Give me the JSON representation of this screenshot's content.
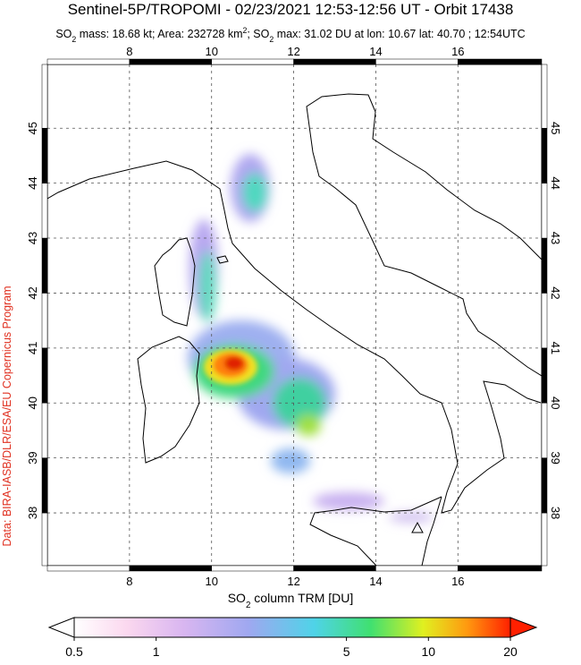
{
  "header": {
    "title": "Sentinel-5P/TROPOMI - 02/23/2021 12:53-12:56 UT - Orbit 17438",
    "subtitle_parts": [
      {
        "text": "SO",
        "sub": "2"
      },
      {
        "text": " mass: 18.68 kt; Area: 232728 km",
        "sup": "2"
      },
      {
        "text": "; SO",
        "sub": "2"
      },
      {
        "text": " max: 31.02 DU at lon: 10.67 lat: 40.70 ; 12:54UTC"
      }
    ]
  },
  "map": {
    "lonlim": [
      6,
      18.04
    ],
    "latlim": [
      37.04,
      46.16
    ],
    "lonticks": [
      8,
      10,
      12,
      14,
      16
    ],
    "latticks": [
      38,
      39,
      40,
      41,
      42,
      43,
      44,
      45
    ],
    "grid": true
  },
  "colorbar": {
    "label_parts": [
      {
        "text": "SO",
        "sub": "2"
      },
      {
        "text": " column TRM [DU]"
      }
    ],
    "lim": [
      0.5,
      20
    ],
    "ticks": [
      0.5,
      1,
      5,
      10,
      20
    ],
    "log": true
  },
  "credit": "Data: BIRA-IASB/DLR/ESA/EU Copernicus Program"
}
